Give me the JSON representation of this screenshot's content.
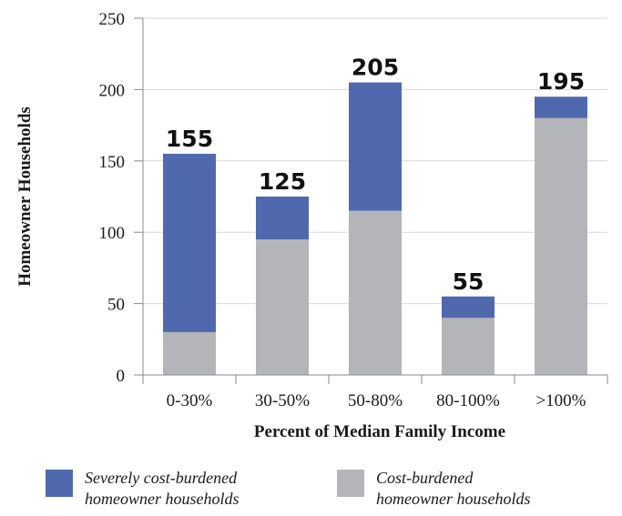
{
  "chart_data": {
    "type": "bar",
    "stacked": true,
    "categories": [
      "0-30%",
      "30-50%",
      "50-80%",
      "80-100%",
      ">100%"
    ],
    "series": [
      {
        "name": "Cost-burdened homeowner households",
        "values": [
          30,
          95,
          115,
          40,
          180
        ],
        "color": "#b4b5b8"
      },
      {
        "name": "Severely cost-burdened homeowner households",
        "values": [
          125,
          30,
          90,
          15,
          15
        ],
        "color": "#5069ae"
      }
    ],
    "totals": [
      155,
      125,
      205,
      55,
      195
    ],
    "xlabel": "Percent of Median Family Income",
    "ylabel": "Homeowner Households",
    "ylim": [
      0,
      250
    ],
    "yticks": [
      0,
      50,
      100,
      150,
      200,
      250
    ],
    "grid": true,
    "legend_position": "bottom"
  },
  "legend": [
    {
      "line1": "Severely cost-burdened",
      "line2": "homeowner households",
      "color": "#5069ae"
    },
    {
      "line1": "Cost-burdened",
      "line2": "homeowner households",
      "color": "#b4b5b8"
    }
  ]
}
